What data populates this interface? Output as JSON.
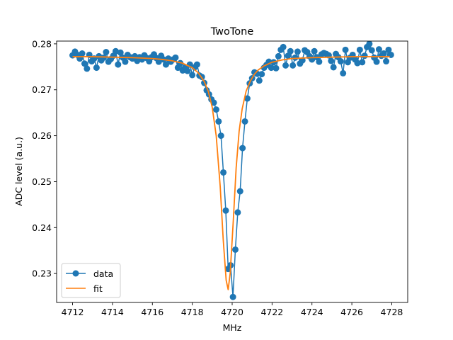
{
  "chart_data": {
    "type": "line",
    "title": "TwoTone",
    "xlabel": "MHz",
    "ylabel": "ADC level (a.u.)",
    "xlim": [
      4711.2,
      4728.8
    ],
    "ylim": [
      0.2237,
      0.2806
    ],
    "xticks": [
      4712,
      4714,
      4716,
      4718,
      4720,
      4722,
      4724,
      4726,
      4728
    ],
    "xtick_labels": [
      "4712",
      "4714",
      "4716",
      "4718",
      "4720",
      "4722",
      "4724",
      "4726",
      "4728"
    ],
    "yticks": [
      0.23,
      0.24,
      0.25,
      0.26,
      0.27,
      0.28
    ],
    "ytick_labels": [
      "0.23",
      "0.24",
      "0.25",
      "0.26",
      "0.27",
      "0.28"
    ],
    "grid": false,
    "legend_position": "lower-left",
    "series": [
      {
        "name": "data",
        "style": "line-marker",
        "color": "#1f77b4",
        "x": [
          4712.0,
          4712.12,
          4712.24,
          4712.36,
          4712.48,
          4712.6,
          4712.72,
          4712.84,
          4712.96,
          4713.08,
          4713.2,
          4713.32,
          4713.44,
          4713.56,
          4713.68,
          4713.8,
          4713.92,
          4714.04,
          4714.16,
          4714.28,
          4714.4,
          4714.52,
          4714.64,
          4714.76,
          4714.88,
          4715.0,
          4715.12,
          4715.24,
          4715.36,
          4715.48,
          4715.6,
          4715.72,
          4715.84,
          4715.96,
          4716.08,
          4716.2,
          4716.32,
          4716.44,
          4716.56,
          4716.68,
          4716.8,
          4716.92,
          4717.04,
          4717.16,
          4717.28,
          4717.4,
          4717.52,
          4717.64,
          4717.76,
          4717.88,
          4718.0,
          4718.12,
          4718.24,
          4718.36,
          4718.48,
          4718.6,
          4718.72,
          4718.84,
          4718.96,
          4719.08,
          4719.2,
          4719.32,
          4719.44,
          4719.56,
          4719.68,
          4719.8,
          4719.92,
          4720.04,
          4720.16,
          4720.28,
          4720.4,
          4720.52,
          4720.64,
          4720.76,
          4720.88,
          4721.0,
          4721.12,
          4721.24,
          4721.36,
          4721.48,
          4721.6,
          4721.72,
          4721.84,
          4721.96,
          4722.08,
          4722.2,
          4722.32,
          4722.44,
          4722.56,
          4722.68,
          4722.8,
          4722.92,
          4723.04,
          4723.16,
          4723.28,
          4723.4,
          4723.52,
          4723.64,
          4723.76,
          4723.88,
          4724.0,
          4724.12,
          4724.24,
          4724.36,
          4724.48,
          4724.6,
          4724.72,
          4724.84,
          4724.96,
          4725.08,
          4725.2,
          4725.32,
          4725.44,
          4725.56,
          4725.68,
          4725.8,
          4725.92,
          4726.04,
          4726.16,
          4726.28,
          4726.4,
          4726.52,
          4726.64,
          4726.76,
          4726.88,
          4727.0,
          4727.12,
          4727.24,
          4727.36,
          4727.48,
          4727.6,
          4727.72,
          4727.84,
          4727.96
        ],
        "y": [
          0.2775,
          0.2783,
          0.2776,
          0.2768,
          0.2779,
          0.2757,
          0.2746,
          0.2776,
          0.2762,
          0.2768,
          0.2748,
          0.2773,
          0.2764,
          0.277,
          0.2782,
          0.2761,
          0.2767,
          0.2774,
          0.2784,
          0.2755,
          0.2781,
          0.277,
          0.2761,
          0.2776,
          0.2771,
          0.2768,
          0.2773,
          0.2763,
          0.2771,
          0.2766,
          0.2775,
          0.2769,
          0.2762,
          0.2771,
          0.2777,
          0.2769,
          0.2761,
          0.2774,
          0.2766,
          0.2755,
          0.2768,
          0.2761,
          0.2766,
          0.277,
          0.2748,
          0.2758,
          0.2742,
          0.2749,
          0.2741,
          0.2755,
          0.2732,
          0.2749,
          0.2755,
          0.2731,
          0.2728,
          0.2715,
          0.2699,
          0.269,
          0.2679,
          0.2672,
          0.2657,
          0.2631,
          0.26,
          0.252,
          0.2437,
          0.231,
          0.2318,
          0.2249,
          0.2352,
          0.2433,
          0.2479,
          0.2573,
          0.2631,
          0.2681,
          0.2714,
          0.2725,
          0.2738,
          0.2735,
          0.272,
          0.2734,
          0.2748,
          0.2754,
          0.2761,
          0.2748,
          0.276,
          0.2747,
          0.2773,
          0.2787,
          0.2793,
          0.2753,
          0.2774,
          0.2784,
          0.2753,
          0.277,
          0.2783,
          0.2757,
          0.2764,
          0.2786,
          0.2782,
          0.2773,
          0.2766,
          0.2784,
          0.2771,
          0.2761,
          0.2777,
          0.278,
          0.2778,
          0.2775,
          0.2763,
          0.2749,
          0.2778,
          0.2771,
          0.2762,
          0.2736,
          0.2787,
          0.276,
          0.277,
          0.2776,
          0.2766,
          0.2758,
          0.2787,
          0.276,
          0.2774,
          0.2793,
          0.28,
          0.2786,
          0.277,
          0.2761,
          0.2788,
          0.2774,
          0.2779,
          0.2762,
          0.2787,
          0.2776
        ]
      },
      {
        "name": "fit",
        "style": "line",
        "color": "#ff7f0e",
        "x": [
          4712.0,
          4713.0,
          4714.0,
          4715.0,
          4716.0,
          4716.5,
          4717.0,
          4717.5,
          4718.0,
          4718.3,
          4718.6,
          4718.8,
          4719.0,
          4719.2,
          4719.4,
          4719.55,
          4719.7,
          4719.8,
          4719.9,
          4720.05,
          4720.2,
          4720.35,
          4720.5,
          4720.7,
          4720.9,
          4721.1,
          4721.3,
          4721.6,
          4722.0,
          4722.5,
          4723.0,
          4724.0,
          4725.0,
          4726.0,
          4727.0,
          4727.9
        ],
        "y": [
          0.2772,
          0.2772,
          0.2771,
          0.277,
          0.2768,
          0.2766,
          0.2763,
          0.2758,
          0.2748,
          0.2737,
          0.2718,
          0.2697,
          0.2662,
          0.26,
          0.249,
          0.2375,
          0.2285,
          0.2265,
          0.23,
          0.241,
          0.253,
          0.261,
          0.2658,
          0.2697,
          0.2718,
          0.2733,
          0.2743,
          0.2752,
          0.276,
          0.2765,
          0.2768,
          0.277,
          0.2771,
          0.2772,
          0.2772,
          0.2772
        ]
      }
    ]
  }
}
